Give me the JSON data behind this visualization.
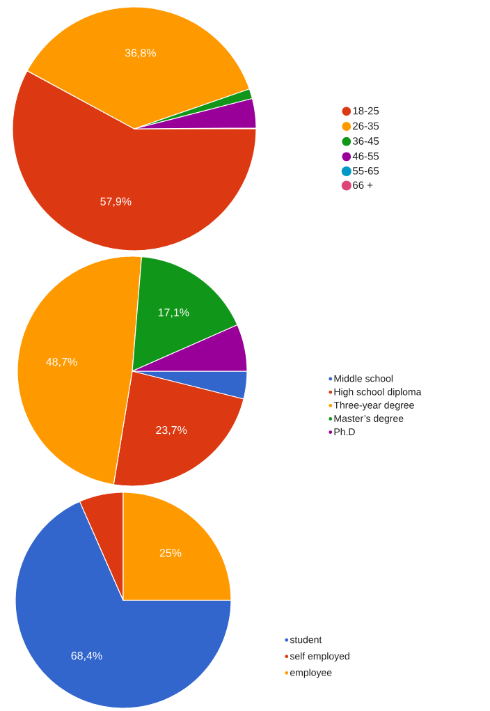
{
  "chart_data": [
    {
      "type": "pie",
      "categories": [
        "18-25",
        "26-35",
        "36-45",
        "46-55",
        "55-65",
        "66 +"
      ],
      "values": [
        57.9,
        36.8,
        1.3,
        3.9,
        0,
        0
      ],
      "colors": [
        "#dc3912",
        "#ff9900",
        "#109618",
        "#990099",
        "#0099c6",
        "#dd4477"
      ],
      "value_labels": [
        "57,9%",
        "36,8%",
        null,
        null,
        null,
        null
      ],
      "legend": "right"
    },
    {
      "type": "pie",
      "categories": [
        "Middle school",
        "High school diploma",
        "Three-year degree",
        "Master’s degree",
        "Ph.D"
      ],
      "values": [
        3.9,
        23.7,
        48.7,
        17.1,
        6.6
      ],
      "colors": [
        "#3366cc",
        "#dc3912",
        "#ff9900",
        "#109618",
        "#990099"
      ],
      "value_labels": [
        null,
        "23,7%",
        "48,7%",
        "17,1%",
        null
      ],
      "legend": "right"
    },
    {
      "type": "pie",
      "categories": [
        "student",
        "self employed",
        "employee"
      ],
      "values": [
        68.4,
        6.6,
        25
      ],
      "colors": [
        "#3366cc",
        "#dc3912",
        "#ff9900"
      ],
      "value_labels": [
        "68,4%",
        null,
        "25%"
      ],
      "legend": "right"
    }
  ]
}
